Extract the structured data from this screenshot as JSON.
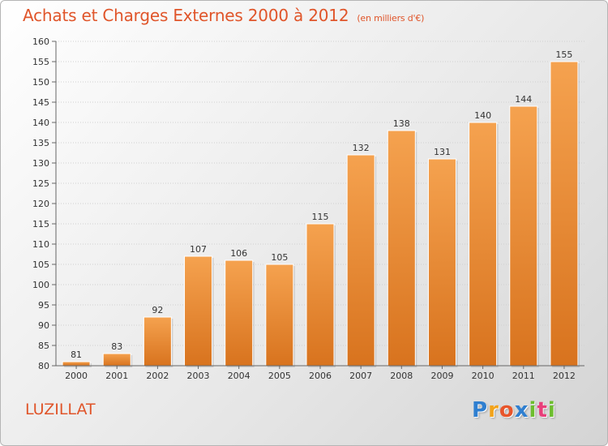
{
  "header": {
    "title": "Achats et Charges Externes 2000 à 2012",
    "unit": "(en milliers d'€)"
  },
  "footer": {
    "place": "LUZILLAT",
    "logo": [
      "P",
      "r",
      "o",
      "x",
      "i",
      "t",
      "i"
    ],
    "logo_colors": [
      "#2f7fd0",
      "#f2a31b",
      "#e8552a",
      "#2f7fd0",
      "#6dbd2f",
      "#e83f7a",
      "#6dbd2f"
    ]
  },
  "chart_data": {
    "type": "bar",
    "title": "Achats et Charges Externes 2000 à 2012",
    "subtitle": "(en milliers d'€)",
    "xlabel": "",
    "ylabel": "",
    "categories": [
      "2000",
      "2001",
      "2002",
      "2003",
      "2004",
      "2005",
      "2006",
      "2007",
      "2008",
      "2009",
      "2010",
      "2011",
      "2012"
    ],
    "values": [
      81,
      83,
      92,
      107,
      106,
      105,
      115,
      132,
      138,
      131,
      140,
      144,
      155
    ],
    "ylim": [
      80,
      160
    ],
    "yticks": [
      80,
      85,
      90,
      95,
      100,
      105,
      110,
      115,
      120,
      125,
      130,
      135,
      140,
      145,
      150,
      155,
      160
    ],
    "grid": true,
    "bar_color_top": "#f5a24f",
    "bar_color_bottom": "#d8731e",
    "title_color": "#e0552a"
  }
}
